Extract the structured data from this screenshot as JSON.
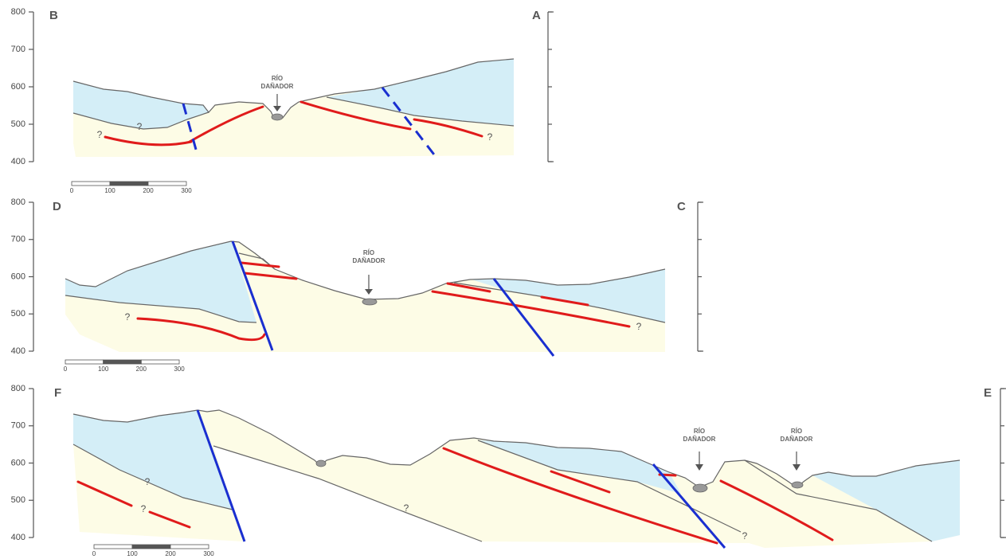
{
  "sections": [
    {
      "left_label": "B",
      "right_label": "A",
      "elevation_ticks": [
        800,
        700,
        600,
        500,
        400
      ],
      "river_labels": [
        {
          "lines": [
            "RÍO",
            "DAÑADOR"
          ]
        }
      ],
      "query_marks": [
        "?",
        "?",
        "?"
      ],
      "scale_ticks": [
        0,
        100,
        200,
        300
      ]
    },
    {
      "left_label": "D",
      "right_label": "C",
      "elevation_ticks": [
        800,
        700,
        600,
        500,
        400
      ],
      "river_labels": [
        {
          "lines": [
            "RÍO",
            "DAÑADOR"
          ]
        }
      ],
      "query_marks": [
        "?",
        "?"
      ],
      "scale_ticks": [
        0,
        100,
        200,
        300
      ]
    },
    {
      "left_label": "F",
      "right_label": "E",
      "elevation_ticks": [
        800,
        700,
        600,
        500,
        400
      ],
      "river_labels": [
        {
          "lines": [
            "RÍO",
            "DAÑADOR"
          ]
        },
        {
          "lines": [
            "RÍO",
            "DAÑADOR"
          ]
        }
      ],
      "query_marks": [
        "?",
        "?",
        "?",
        "?"
      ],
      "scale_ticks": [
        0,
        100,
        200,
        300
      ]
    }
  ]
}
